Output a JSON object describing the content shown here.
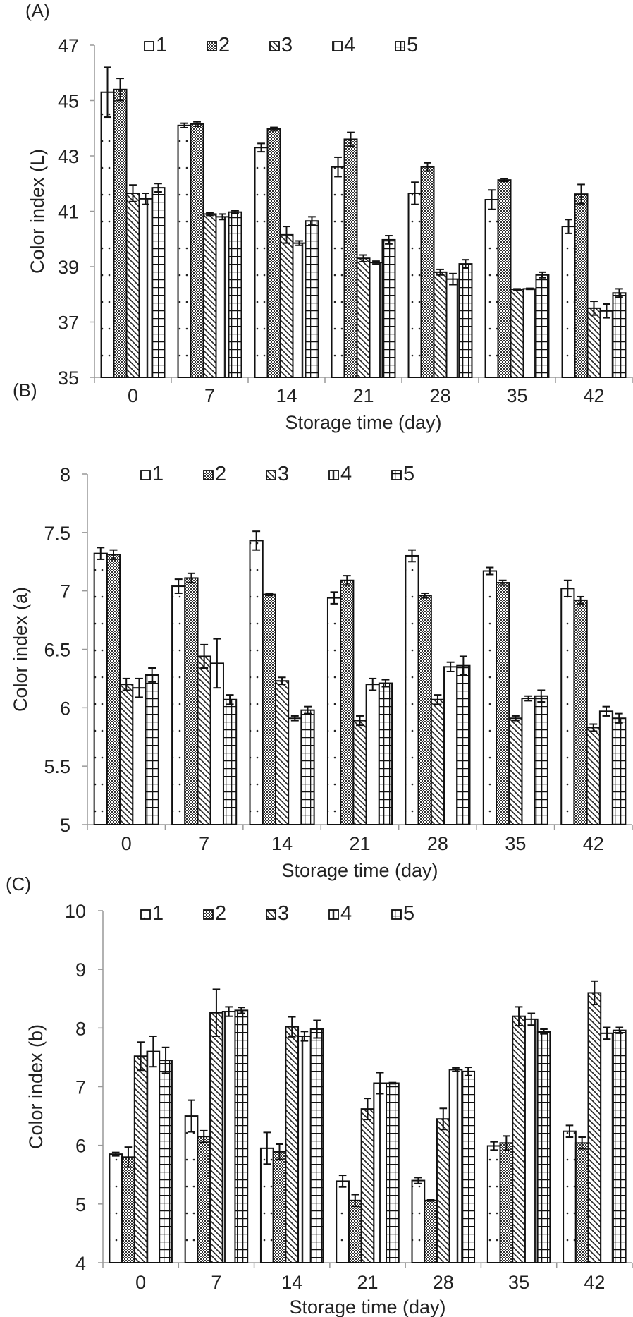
{
  "chart_data": [
    {
      "type": "bar",
      "panel": "(A)",
      "title": "",
      "xlabel": "Storage time (day)",
      "ylabel": "Color index (L)",
      "ylim": [
        35,
        47
      ],
      "yticks": [
        "35",
        "37",
        "39",
        "41",
        "43",
        "45",
        "47"
      ],
      "categories": [
        "0",
        "7",
        "14",
        "21",
        "28",
        "35",
        "42"
      ],
      "legend": "top",
      "grid": false,
      "series": [
        {
          "name": "1",
          "values": [
            45.3,
            44.1,
            43.3,
            42.6,
            41.65,
            41.42,
            40.45
          ],
          "errors": [
            0.9,
            0.08,
            0.15,
            0.35,
            0.4,
            0.35,
            0.25
          ]
        },
        {
          "name": "2",
          "values": [
            45.4,
            44.15,
            43.97,
            43.6,
            42.6,
            42.13,
            41.62
          ],
          "errors": [
            0.4,
            0.08,
            0.06,
            0.25,
            0.15,
            0.05,
            0.35
          ]
        },
        {
          "name": "3",
          "values": [
            41.65,
            40.9,
            40.15,
            39.3,
            38.8,
            38.18,
            37.5
          ],
          "errors": [
            0.3,
            0.05,
            0.3,
            0.12,
            0.1,
            0.02,
            0.25
          ]
        },
        {
          "name": "4",
          "values": [
            41.45,
            40.8,
            39.85,
            39.15,
            38.55,
            38.2,
            37.4
          ],
          "errors": [
            0.2,
            0.1,
            0.08,
            0.05,
            0.2,
            0.02,
            0.25
          ]
        },
        {
          "name": "5",
          "values": [
            41.85,
            40.97,
            40.65,
            39.97,
            39.1,
            38.7,
            38.05
          ],
          "errors": [
            0.15,
            0.05,
            0.15,
            0.15,
            0.15,
            0.1,
            0.15
          ]
        }
      ]
    },
    {
      "type": "bar",
      "panel": "(B)",
      "title": "",
      "xlabel": "Storage time (day)",
      "ylabel": "Color index (a)",
      "ylim": [
        5,
        8
      ],
      "yticks": [
        "5",
        "5.5",
        "6",
        "6.5",
        "7",
        "7.5",
        "8"
      ],
      "categories": [
        "0",
        "7",
        "14",
        "21",
        "28",
        "35",
        "42"
      ],
      "legend": "top",
      "grid": false,
      "series": [
        {
          "name": "1",
          "values": [
            7.32,
            7.04,
            7.43,
            6.94,
            7.3,
            7.17,
            7.02
          ],
          "errors": [
            0.05,
            0.06,
            0.08,
            0.05,
            0.05,
            0.03,
            0.07
          ]
        },
        {
          "name": "2",
          "values": [
            7.31,
            7.11,
            6.97,
            7.09,
            6.96,
            7.07,
            6.92
          ],
          "errors": [
            0.04,
            0.04,
            0.01,
            0.04,
            0.02,
            0.02,
            0.03
          ]
        },
        {
          "name": "3",
          "values": [
            6.2,
            6.44,
            6.23,
            5.89,
            6.07,
            5.91,
            5.83
          ],
          "errors": [
            0.05,
            0.1,
            0.03,
            0.04,
            0.04,
            0.02,
            0.03
          ]
        },
        {
          "name": "4",
          "values": [
            6.17,
            6.38,
            5.91,
            6.2,
            6.35,
            6.08,
            5.97
          ],
          "errors": [
            0.08,
            0.21,
            0.02,
            0.05,
            0.04,
            0.02,
            0.04
          ]
        },
        {
          "name": "5",
          "values": [
            6.28,
            6.07,
            5.98,
            6.21,
            6.36,
            6.1,
            5.91
          ],
          "errors": [
            0.06,
            0.04,
            0.03,
            0.03,
            0.08,
            0.05,
            0.04
          ]
        }
      ]
    },
    {
      "type": "bar",
      "panel": "(C)",
      "title": "",
      "xlabel": "Storage time (day)",
      "ylabel": "Color index (b)",
      "ylim": [
        4,
        10
      ],
      "yticks": [
        "4",
        "5",
        "6",
        "7",
        "8",
        "9",
        "10"
      ],
      "categories": [
        "0",
        "7",
        "14",
        "21",
        "28",
        "35",
        "42"
      ],
      "legend": "top",
      "grid": false,
      "series": [
        {
          "name": "1",
          "values": [
            5.85,
            6.5,
            5.95,
            5.39,
            5.4,
            5.99,
            6.24
          ],
          "errors": [
            0.03,
            0.27,
            0.27,
            0.1,
            0.05,
            0.07,
            0.1
          ]
        },
        {
          "name": "2",
          "values": [
            5.8,
            6.15,
            5.89,
            5.06,
            5.06,
            6.04,
            6.04
          ],
          "errors": [
            0.17,
            0.1,
            0.13,
            0.1,
            0.01,
            0.12,
            0.1
          ]
        },
        {
          "name": "3",
          "values": [
            7.52,
            8.26,
            8.02,
            6.62,
            6.45,
            8.2,
            8.6
          ],
          "errors": [
            0.24,
            0.4,
            0.17,
            0.18,
            0.18,
            0.16,
            0.2
          ]
        },
        {
          "name": "4",
          "values": [
            7.6,
            8.28,
            7.86,
            7.06,
            7.29,
            8.15,
            7.91
          ],
          "errors": [
            0.26,
            0.08,
            0.08,
            0.18,
            0.03,
            0.1,
            0.1
          ]
        },
        {
          "name": "5",
          "values": [
            7.45,
            8.3,
            7.98,
            7.06,
            7.26,
            7.94,
            7.96
          ],
          "errors": [
            0.22,
            0.05,
            0.15,
            0.01,
            0.07,
            0.04,
            0.05
          ]
        }
      ]
    }
  ]
}
